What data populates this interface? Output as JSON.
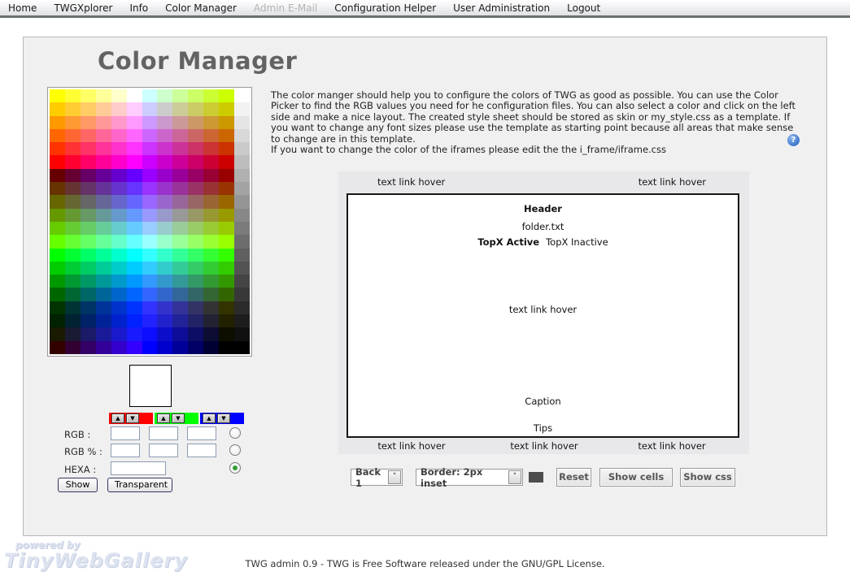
{
  "nav": {
    "items": [
      {
        "label": "Home",
        "disabled": false
      },
      {
        "label": "TWGXplorer",
        "disabled": false
      },
      {
        "label": "Info",
        "disabled": false
      },
      {
        "label": "Color Manager",
        "disabled": false
      },
      {
        "label": "Admin E-Mail",
        "disabled": true
      },
      {
        "label": "Configuration Helper",
        "disabled": false
      },
      {
        "label": "User Administration",
        "disabled": false
      },
      {
        "label": "Logout",
        "disabled": false
      }
    ]
  },
  "page": {
    "title": "Color Manager",
    "description": [
      "The color manger should help you to configure the colors of TWG as good as possible. You can use the Color Picker to find the RGB values you need for he configuration files. You can also select a color and click on the left side and make a nice layout. The created style sheet should be stored as skin or my_style.css as a template. If you want to change any font sizes please use the template as starting point because all areas that make sense to change are in this template.",
      "If you want to change the color of the iframes please edit the the i_frame/iframe.css"
    ],
    "help_icon": "?"
  },
  "palette": {
    "rows": 20,
    "cols": 13,
    "grid": [
      [
        "#FFFF00",
        "#FFFF33",
        "#FFFF66",
        "#FFFF99",
        "#FFFFCC",
        "#FFFFFF",
        "#CCFFFF",
        "#CCFFCC",
        "#CCFF99",
        "#CCFF66",
        "#CCFF33",
        "#CCFF00",
        "#FFFFFF"
      ],
      [
        "#FFCC00",
        "#FFCC33",
        "#FFCC66",
        "#FFCC99",
        "#FFCCCC",
        "#FFCCFF",
        "#CCCCFF",
        "#CCCCCC",
        "#CCCC99",
        "#CCCC66",
        "#CCCC33",
        "#CCCC00",
        "#F2F2F2"
      ],
      [
        "#FF9900",
        "#FF9933",
        "#FF9966",
        "#FF9999",
        "#FF99CC",
        "#FF99FF",
        "#CC99FF",
        "#CC99CC",
        "#CC9999",
        "#CC9966",
        "#CC9933",
        "#CC9900",
        "#E5E5E5"
      ],
      [
        "#FF6600",
        "#FF6633",
        "#FF6666",
        "#FF6699",
        "#FF66CC",
        "#FF66FF",
        "#CC66FF",
        "#CC66CC",
        "#CC6699",
        "#CC6666",
        "#CC6633",
        "#CC6600",
        "#D8D8D8"
      ],
      [
        "#FF3300",
        "#FF3333",
        "#FF3366",
        "#FF3399",
        "#FF33CC",
        "#FF33FF",
        "#CC33FF",
        "#CC33CC",
        "#CC3399",
        "#CC3366",
        "#CC3333",
        "#CC3300",
        "#CACACA"
      ],
      [
        "#FF0000",
        "#FF0033",
        "#FF0066",
        "#FF0099",
        "#FF00CC",
        "#FF00FF",
        "#CC00FF",
        "#CC00CC",
        "#CC0099",
        "#CC0066",
        "#CC0033",
        "#CC0000",
        "#BDBDBD"
      ],
      [
        "#660000",
        "#660033",
        "#660066",
        "#660099",
        "#6600CC",
        "#6600FF",
        "#9900FF",
        "#9900CC",
        "#990099",
        "#990066",
        "#990033",
        "#990000",
        "#B0B0B0"
      ],
      [
        "#663300",
        "#663333",
        "#663366",
        "#663399",
        "#6633CC",
        "#6633FF",
        "#9933FF",
        "#9933CC",
        "#993399",
        "#993366",
        "#993333",
        "#993300",
        "#A3A3A3"
      ],
      [
        "#666600",
        "#666633",
        "#666666",
        "#666699",
        "#6666CC",
        "#6666FF",
        "#9966FF",
        "#9966CC",
        "#996699",
        "#996666",
        "#996633",
        "#996600",
        "#959595"
      ],
      [
        "#669900",
        "#669933",
        "#669966",
        "#669999",
        "#6699CC",
        "#6699FF",
        "#9999FF",
        "#9999CC",
        "#999999",
        "#999966",
        "#999933",
        "#999900",
        "#888888"
      ],
      [
        "#66CC00",
        "#66CC33",
        "#66CC66",
        "#66CC99",
        "#66CCCC",
        "#66CCFF",
        "#99CCFF",
        "#99CCCC",
        "#99CC99",
        "#99CC66",
        "#99CC33",
        "#99CC00",
        "#7B7B7B"
      ],
      [
        "#66FF00",
        "#66FF33",
        "#66FF66",
        "#66FF99",
        "#66FFCC",
        "#66FFFF",
        "#99FFFF",
        "#99FFCC",
        "#99FF99",
        "#99FF66",
        "#99FF33",
        "#99FF00",
        "#6D6D6D"
      ],
      [
        "#00FF00",
        "#00FF33",
        "#00FF66",
        "#00FF99",
        "#00FFCC",
        "#00FFFF",
        "#33FFFF",
        "#33FFCC",
        "#33FF99",
        "#33FF66",
        "#33FF33",
        "#33FF00",
        "#606060"
      ],
      [
        "#00CC00",
        "#00CC33",
        "#00CC66",
        "#00CC99",
        "#00CCCC",
        "#00CCFF",
        "#33CCFF",
        "#33CCCC",
        "#33CC99",
        "#33CC66",
        "#33CC33",
        "#33CC00",
        "#535353"
      ],
      [
        "#009900",
        "#009933",
        "#009966",
        "#009999",
        "#0099CC",
        "#0099FF",
        "#3399FF",
        "#3399CC",
        "#339999",
        "#339966",
        "#339933",
        "#339900",
        "#454545"
      ],
      [
        "#006600",
        "#006633",
        "#006666",
        "#006699",
        "#0066CC",
        "#0066FF",
        "#3366FF",
        "#3366CC",
        "#336699",
        "#336666",
        "#336633",
        "#336600",
        "#383838"
      ],
      [
        "#003300",
        "#003333",
        "#003366",
        "#003399",
        "#0033CC",
        "#0033FF",
        "#3333FF",
        "#3333CC",
        "#333399",
        "#333366",
        "#333333",
        "#333300",
        "#2B2B2B"
      ],
      [
        "#002200",
        "#002233",
        "#002266",
        "#002299",
        "#0022CC",
        "#0022FF",
        "#2222FF",
        "#2222CC",
        "#222299",
        "#222266",
        "#222233",
        "#222200",
        "#1D1D1D"
      ],
      [
        "#1A1A00",
        "#1A1A33",
        "#1A1A66",
        "#1A1A99",
        "#1A1ACC",
        "#1A1AFF",
        "#0D0DFF",
        "#0D0DCC",
        "#0D0D99",
        "#0D0D66",
        "#0D0D33",
        "#0D0D00",
        "#101010"
      ],
      [
        "#330000",
        "#330033",
        "#330066",
        "#330099",
        "#3300CC",
        "#3300FF",
        "#0000FF",
        "#0000CC",
        "#000099",
        "#000066",
        "#000033",
        "#000000",
        "#000000"
      ]
    ]
  },
  "picker": {
    "spinners": [
      {
        "name": "red",
        "color": "#FF0000",
        "up": "▲",
        "down": "▼"
      },
      {
        "name": "green",
        "color": "#00FF00",
        "up": "▲",
        "down": "▼"
      },
      {
        "name": "blue",
        "color": "#0000FF",
        "up": "▲",
        "down": "▼"
      }
    ],
    "labels": {
      "rgb": "RGB :",
      "rgb_percent": "RGB % :",
      "hexa": "HEXA :"
    },
    "inputs": {
      "rgb": [
        "",
        "",
        ""
      ],
      "rgb_percent": [
        "",
        "",
        ""
      ],
      "hexa": ""
    },
    "radios": [
      {
        "selected": false
      },
      {
        "selected": false
      },
      {
        "selected": true
      }
    ],
    "buttons": {
      "show": "Show",
      "transparent": "Transparent"
    }
  },
  "preview": {
    "top_labels": [
      "text link hover",
      "text link hover"
    ],
    "bottom_labels": [
      "text link hover",
      "text link hover",
      "text link hover"
    ],
    "box": {
      "header": "Header",
      "file": "folder.txt",
      "topx_active": "TopX Active",
      "topx_inactive": "TopX Inactive",
      "middle_link": "text link hover",
      "caption": "Caption",
      "tips": "Tips"
    }
  },
  "controls": {
    "selects": [
      {
        "value": "Back 1",
        "arrow": "˅"
      },
      {
        "value": "Border: 2px inset",
        "arrow": "˅"
      }
    ],
    "swatch_color": "#4D4D4D",
    "buttons": [
      "Reset",
      "Show cells",
      "Show css"
    ]
  },
  "footer": {
    "text": "TWG admin 0.9 - TWG is Free Software released under the GNU/GPL License."
  },
  "logo": {
    "line1": "powered by",
    "line2": "TinyWebGallery"
  }
}
